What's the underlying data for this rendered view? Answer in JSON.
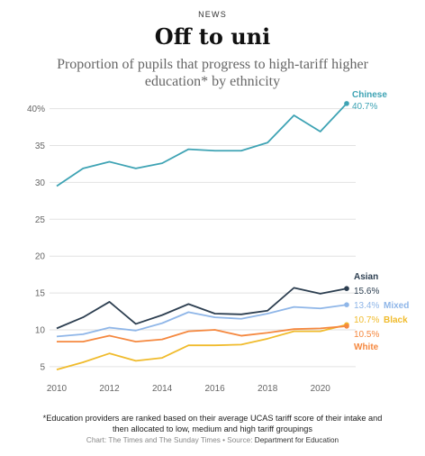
{
  "kicker": "NEWS",
  "title": "Off to uni",
  "subtitle_line1": "Proportion of pupils that progress to high-tariff higher",
  "subtitle_line2": "education* by ethnicity",
  "footnote_line1": "*Education providers are ranked based on their average UCAS tariff score of their intake and",
  "footnote_line2": "then allocated to low, medium and high tariff groupings",
  "credit_prefix": "Chart: The Times and The Sunday Times • Source: ",
  "credit_source": "Department for Education",
  "chart_data": {
    "type": "line",
    "x": [
      2010,
      2011,
      2012,
      2013,
      2014,
      2015,
      2016,
      2017,
      2018,
      2019,
      2020,
      2021
    ],
    "xticks": [
      "2010",
      "2012",
      "2014",
      "2016",
      "2018",
      "2020"
    ],
    "yticks": [
      "40%",
      "35",
      "30",
      "25",
      "20",
      "15",
      "10",
      "5"
    ],
    "ylim": [
      4,
      41
    ],
    "xlim": [
      2010,
      2021
    ],
    "grid": true,
    "series": [
      {
        "name": "Chinese",
        "label": "40.7%",
        "color": "#3ea3b4",
        "values": [
          29.5,
          31.9,
          32.8,
          31.9,
          32.6,
          34.5,
          34.3,
          34.3,
          35.4,
          39.1,
          36.9,
          40.7
        ]
      },
      {
        "name": "Asian",
        "label": "15.6%",
        "color": "#2c3e50",
        "values": [
          10.2,
          11.7,
          13.8,
          10.8,
          12.0,
          13.5,
          12.2,
          12.1,
          12.6,
          15.7,
          14.9,
          15.6
        ]
      },
      {
        "name": "Mixed",
        "label": "13.4%",
        "color": "#8fb6e8",
        "values": [
          9.1,
          9.4,
          10.3,
          9.9,
          10.9,
          12.4,
          11.7,
          11.5,
          12.2,
          13.1,
          12.9,
          13.4
        ]
      },
      {
        "name": "Black",
        "label": "10.7%",
        "color": "#f0bb2c",
        "values": [
          4.6,
          5.6,
          6.8,
          5.8,
          6.2,
          7.9,
          7.9,
          8.0,
          8.8,
          9.8,
          9.8,
          10.7
        ]
      },
      {
        "name": "White",
        "label": "10.5%",
        "color": "#f5883f",
        "values": [
          8.4,
          8.4,
          9.2,
          8.4,
          8.7,
          9.8,
          10.0,
          9.2,
          9.6,
          10.1,
          10.2,
          10.5
        ]
      }
    ]
  }
}
